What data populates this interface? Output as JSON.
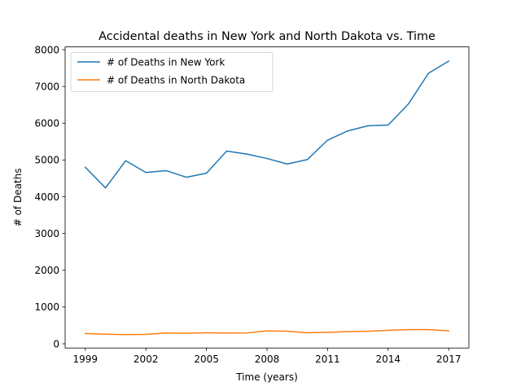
{
  "chart_data": {
    "type": "line",
    "title": "Accidental deaths in New York and North Dakota vs. Time",
    "xlabel": "Time (years)",
    "ylabel": "# of Deaths",
    "x": [
      1999,
      2000,
      2001,
      2002,
      2003,
      2004,
      2005,
      2006,
      2007,
      2008,
      2009,
      2010,
      2011,
      2012,
      2013,
      2014,
      2015,
      2016,
      2017
    ],
    "xticks": [
      "1999",
      "2002",
      "2005",
      "2008",
      "2011",
      "2014",
      "2017"
    ],
    "yticks": [
      "0",
      "1000",
      "2000",
      "3000",
      "4000",
      "5000",
      "6000",
      "7000",
      "8000"
    ],
    "xlim": [
      1999,
      2017
    ],
    "ylim": [
      0,
      8000
    ],
    "grid": false,
    "legend_position": "top-left",
    "series": [
      {
        "name": "# of Deaths in New York",
        "color": "#1f77b4",
        "values": [
          4800,
          4240,
          4980,
          4660,
          4710,
          4530,
          4640,
          5240,
          5160,
          5040,
          4890,
          5010,
          5540,
          5790,
          5930,
          5950,
          6520,
          7360,
          7690
        ]
      },
      {
        "name": "# of Deaths in North Dakota",
        "color": "#ff7f0e",
        "values": [
          280,
          260,
          250,
          255,
          295,
          285,
          300,
          290,
          295,
          350,
          340,
          300,
          310,
          330,
          340,
          365,
          385,
          385,
          350
        ]
      }
    ]
  }
}
